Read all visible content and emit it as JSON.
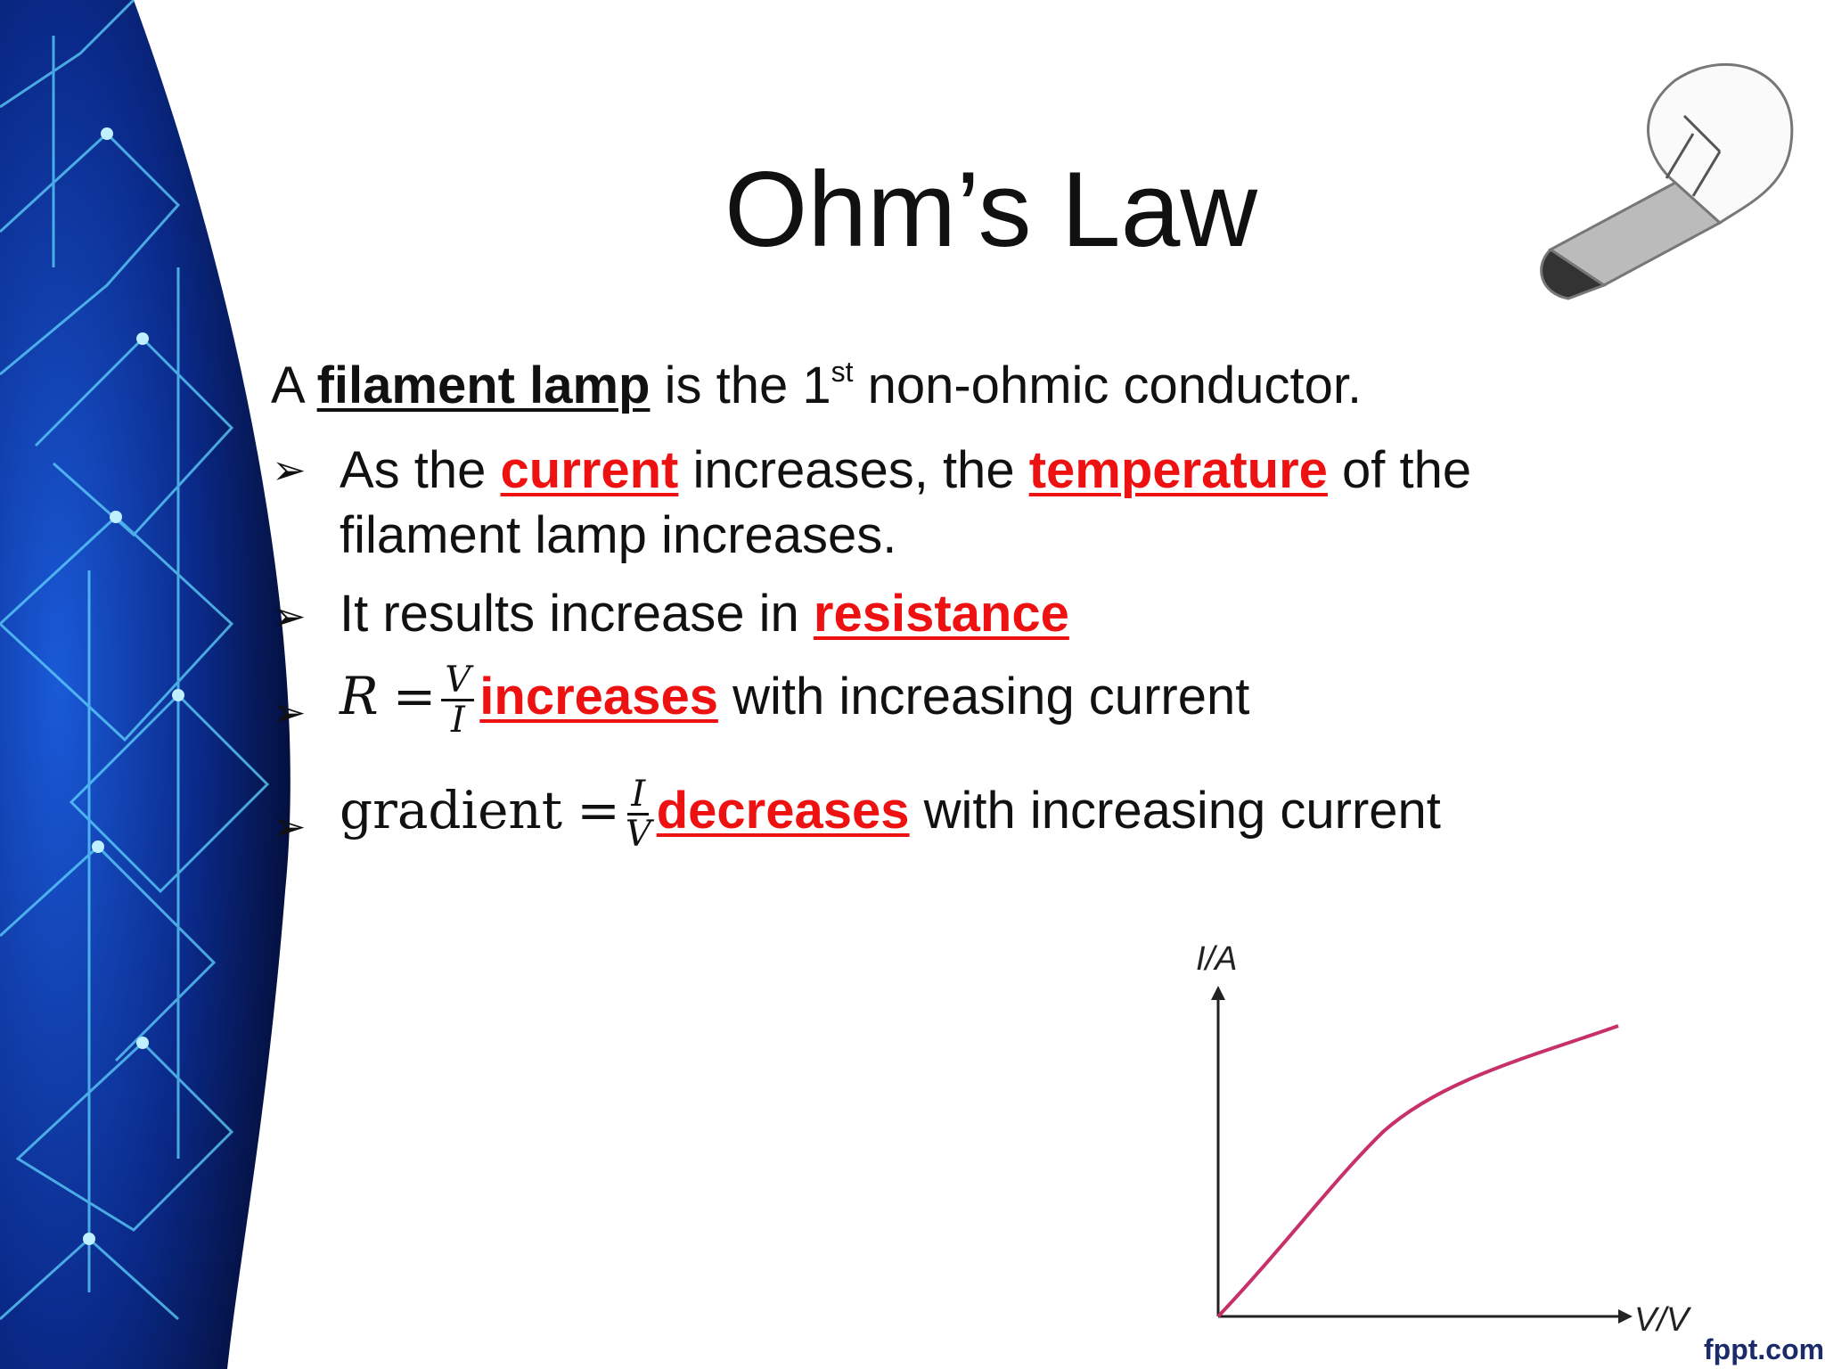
{
  "title": "Ohm’s Law",
  "intro": [
    "A ",
    "filament lamp",
    " is the 1",
    "st",
    " non-ohmic conductor."
  ],
  "bullets": [
    [
      "As the ",
      "current",
      " increases, the ",
      "temperature",
      " of the filament lamp increases."
    ],
    [
      "It results increase in ",
      "resistance"
    ],
    [
      "R",
      "=",
      "V",
      "I",
      "increases",
      " with increasing current"
    ],
    [
      "gradient",
      "=",
      "I",
      "V",
      "decreases",
      " with increasing current"
    ]
  ],
  "graph": {
    "y_label": "I/A",
    "x_label": "V/V"
  },
  "footer": "fppt.com"
}
